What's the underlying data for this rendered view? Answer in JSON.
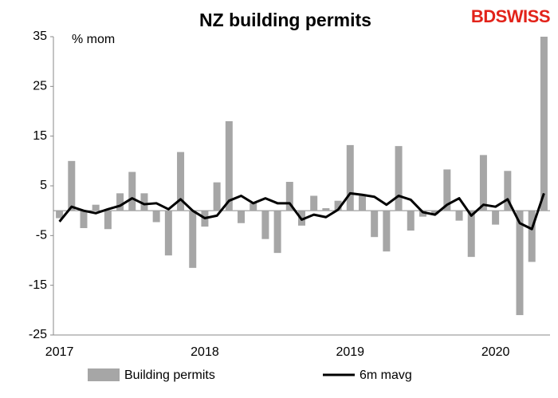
{
  "chart_data": {
    "type": "bar_line",
    "title": "NZ building permits",
    "logo": "BDSWISS",
    "unit": "% mom",
    "categories": [
      "2017",
      null,
      null,
      null,
      null,
      null,
      null,
      null,
      null,
      null,
      null,
      null,
      "2018",
      null,
      null,
      null,
      null,
      null,
      null,
      null,
      null,
      null,
      null,
      null,
      "2019",
      null,
      null,
      null,
      null,
      null,
      null,
      null,
      null,
      null,
      null,
      null,
      "2020",
      null,
      null,
      null,
      null
    ],
    "series": [
      {
        "name": "Building permits",
        "type": "bar",
        "color": "#a6a6a6",
        "values": [
          -1.5,
          10,
          -3.5,
          1.2,
          -3.7,
          3.5,
          7.8,
          3.5,
          -2.3,
          -9,
          11.8,
          -11.5,
          -3.2,
          5.7,
          18,
          -2.5,
          1.5,
          -5.7,
          -8.5,
          5.8,
          -3,
          3,
          0.5,
          2,
          13.2,
          3,
          -5.3,
          -8.2,
          13,
          -4,
          -1.2,
          -0.7,
          8.3,
          -2,
          -9.3,
          11.2,
          -2.8,
          8,
          -21,
          -10.3,
          35
        ]
      },
      {
        "name": "6m mavg",
        "type": "line",
        "color": "#000000",
        "values": [
          -2.2,
          0.8,
          0,
          -0.5,
          0.3,
          1,
          2.5,
          1.3,
          1.5,
          0.3,
          2.3,
          0,
          -1.5,
          -1,
          2,
          3,
          1.5,
          2.5,
          1.5,
          1.5,
          -1.8,
          -0.8,
          -1.3,
          0.2,
          3.5,
          3.2,
          2.8,
          1.2,
          3,
          2.2,
          -0.3,
          -0.8,
          1.2,
          2.5,
          -1,
          1.2,
          0.8,
          2.3,
          -2.5,
          -3.7,
          3.5
        ]
      }
    ],
    "ylim": [
      -25,
      35
    ],
    "yticks": [
      -25,
      -15,
      -5,
      5,
      15,
      25,
      35
    ],
    "grid": false
  }
}
